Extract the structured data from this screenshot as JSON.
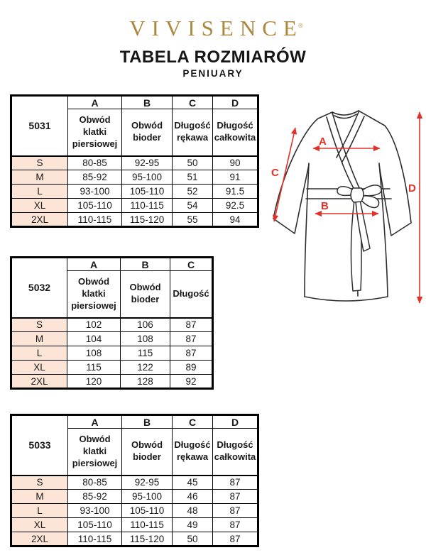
{
  "brand": {
    "name": "VIVISENCE",
    "mark": "®"
  },
  "title": "TABELA ROZMIARÓW",
  "subtitle": "PENIUARY",
  "colors": {
    "brand_gold": "#ab883c",
    "annotation_red": "#e53029",
    "size_cell_bg": "#fce4d6",
    "table_border": "#000000"
  },
  "tables": [
    {
      "model": "5031",
      "columns": [
        {
          "letter": "A",
          "label": "Obwód klatki piersiowej"
        },
        {
          "letter": "B",
          "label": "Obwód bioder"
        },
        {
          "letter": "C",
          "label": "Długość rękawa"
        },
        {
          "letter": "D",
          "label": "Długość całkowita"
        }
      ],
      "rows": [
        {
          "size": "S",
          "values": [
            "80-85",
            "92-95",
            "50",
            "90"
          ]
        },
        {
          "size": "M",
          "values": [
            "85-92",
            "95-100",
            "51",
            "91"
          ]
        },
        {
          "size": "L",
          "values": [
            "93-100",
            "105-110",
            "52",
            "91.5"
          ]
        },
        {
          "size": "XL",
          "values": [
            "105-110",
            "110-115",
            "54",
            "92.5"
          ]
        },
        {
          "size": "2XL",
          "values": [
            "110-115",
            "115-120",
            "55",
            "94"
          ]
        }
      ]
    },
    {
      "model": "5032",
      "columns": [
        {
          "letter": "A",
          "label": "Obwód klatki piersiowej"
        },
        {
          "letter": "B",
          "label": "Obwód bioder"
        },
        {
          "letter": "C",
          "label": "Długość"
        }
      ],
      "rows": [
        {
          "size": "S",
          "values": [
            "102",
            "106",
            "87"
          ]
        },
        {
          "size": "M",
          "values": [
            "104",
            "108",
            "87"
          ]
        },
        {
          "size": "L",
          "values": [
            "108",
            "115",
            "87"
          ]
        },
        {
          "size": "XL",
          "values": [
            "115",
            "122",
            "89"
          ]
        },
        {
          "size": "2XL",
          "values": [
            "120",
            "128",
            "92"
          ]
        }
      ]
    },
    {
      "model": "5033",
      "columns": [
        {
          "letter": "A",
          "label": "Obwód klatki piersiowej"
        },
        {
          "letter": "B",
          "label": "Obwód bioder"
        },
        {
          "letter": "C",
          "label": "Długość rękawa"
        },
        {
          "letter": "D",
          "label": "Długość całkowita"
        }
      ],
      "rows": [
        {
          "size": "S",
          "values": [
            "80-85",
            "92-95",
            "45",
            "87"
          ]
        },
        {
          "size": "M",
          "values": [
            "85-92",
            "95-100",
            "46",
            "87"
          ]
        },
        {
          "size": "L",
          "values": [
            "93-100",
            "105-110",
            "48",
            "87"
          ]
        },
        {
          "size": "XL",
          "values": [
            "105-110",
            "110-115",
            "49",
            "87"
          ]
        },
        {
          "size": "2XL",
          "values": [
            "110-115",
            "115-120",
            "50",
            "87"
          ]
        }
      ]
    }
  ],
  "diagram": {
    "labels": {
      "a": "A",
      "b": "B",
      "c": "C",
      "d": "D"
    }
  }
}
